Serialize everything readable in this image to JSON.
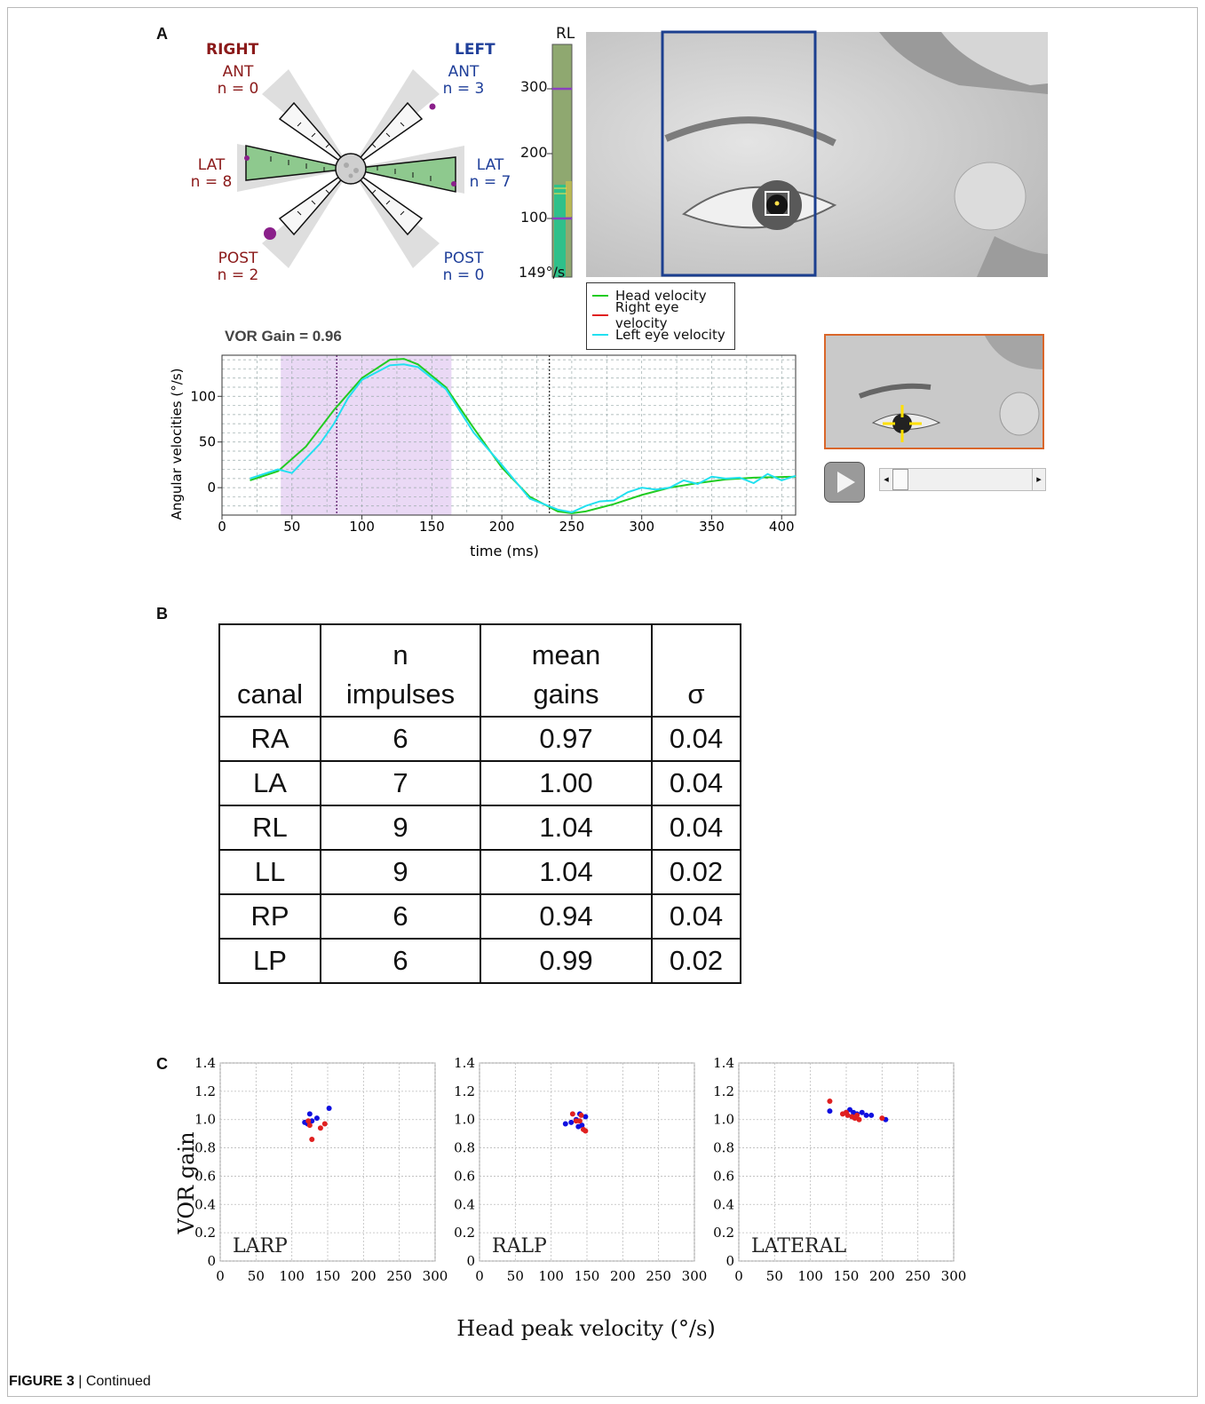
{
  "caption": {
    "figure": "FIGURE 3",
    "separator": " | ",
    "text": "Continued"
  },
  "panels": {
    "a": "A",
    "b": "B",
    "c": "C"
  },
  "rose": {
    "right_title": "RIGHT",
    "left_title": "LEFT",
    "labels": {
      "r_ant": "ANT",
      "r_ant_n": "n = 0",
      "r_lat": "LAT",
      "r_lat_n": "n = 8",
      "r_post": "POST",
      "r_post_n": "n = 2",
      "l_ant": "ANT",
      "l_ant_n": "n = 3",
      "l_lat": "LAT",
      "l_lat_n": "n = 7",
      "l_post": "POST",
      "l_post_n": "n = 0"
    }
  },
  "velocity_bar": {
    "title": "RL",
    "ticks": [
      "300",
      "200",
      "100"
    ],
    "bottom": "149°/s",
    "colors": {
      "bar": "#8fa870",
      "fill": "#2fc08a",
      "marker": "#8a3fbf"
    }
  },
  "legend": {
    "items": [
      {
        "label": "Head velocity",
        "color": "#22cc22"
      },
      {
        "label": "Right eye velocity",
        "color": "#e02020"
      },
      {
        "label": "Left eye velocity",
        "color": "#22e0f0"
      }
    ]
  },
  "video": {
    "play_icon": "play-icon",
    "scroll_left": "◂",
    "scroll_right": "▸"
  },
  "impulse_chart": {
    "title": "VOR Gain = 0.96",
    "chart_data": {
      "type": "line",
      "title": "VOR Gain = 0.96",
      "xlabel": "time (ms)",
      "ylabel": "Angular velocities (°/s)",
      "xlim": [
        0,
        410
      ],
      "ylim": [
        -30,
        145
      ],
      "x_ticks": [
        0,
        50,
        100,
        150,
        200,
        250,
        300,
        350,
        400
      ],
      "y_ticks": [
        0,
        50,
        100
      ],
      "shaded_range": [
        42,
        164
      ],
      "vlines": [
        82,
        234
      ],
      "series": [
        {
          "name": "Head velocity",
          "color": "#22cc22",
          "x": [
            20,
            40,
            60,
            80,
            100,
            120,
            130,
            140,
            160,
            180,
            200,
            220,
            240,
            250,
            260,
            280,
            300,
            320,
            340,
            360,
            380,
            410
          ],
          "y": [
            8,
            18,
            45,
            85,
            120,
            140,
            141,
            135,
            110,
            65,
            22,
            -10,
            -26,
            -28,
            -26,
            -18,
            -8,
            0,
            5,
            9,
            11,
            12
          ]
        },
        {
          "name": "Left eye velocity",
          "color": "#22e0f0",
          "x": [
            20,
            40,
            50,
            60,
            70,
            80,
            90,
            100,
            120,
            130,
            140,
            160,
            180,
            200,
            220,
            240,
            250,
            260,
            270,
            280,
            290,
            300,
            310,
            320,
            330,
            340,
            350,
            360,
            370,
            380,
            390,
            400,
            410
          ],
          "y": [
            10,
            20,
            16,
            32,
            48,
            70,
            98,
            118,
            134,
            135,
            132,
            108,
            60,
            25,
            -12,
            -24,
            -27,
            -20,
            -15,
            -14,
            -5,
            0,
            -2,
            0,
            8,
            4,
            12,
            10,
            11,
            5,
            15,
            8,
            13
          ]
        }
      ]
    }
  },
  "table": {
    "headers": [
      {
        "line1": "",
        "line2": "canal"
      },
      {
        "line1": "n",
        "line2": "impulses"
      },
      {
        "line1": "mean",
        "line2": "gains"
      },
      {
        "line1": "",
        "line2": "σ"
      }
    ],
    "rows": [
      [
        "RA",
        "6",
        "0.97",
        "0.04"
      ],
      [
        "LA",
        "7",
        "1.00",
        "0.04"
      ],
      [
        "RL",
        "9",
        "1.04",
        "0.04"
      ],
      [
        "LL",
        "9",
        "1.04",
        "0.02"
      ],
      [
        "RP",
        "6",
        "0.94",
        "0.04"
      ],
      [
        "LP",
        "6",
        "0.99",
        "0.02"
      ]
    ]
  },
  "scatter": {
    "ylabel": "VOR gain",
    "xlabel": "Head peak velocity (°/s)",
    "chart_data": [
      {
        "type": "scatter",
        "title": "LARP",
        "xlim": [
          0,
          300
        ],
        "ylim": [
          0,
          1.4
        ],
        "x_ticks": [
          0,
          50,
          100,
          150,
          200,
          250,
          300
        ],
        "y_ticks": [
          "0",
          "0.2",
          "0.4",
          "0.6",
          "0.8",
          "1.0",
          "1.2",
          "1.4"
        ],
        "series": [
          {
            "color": "#1010e0",
            "points": [
              [
                118,
                0.98
              ],
              [
                125,
                1.04
              ],
              [
                128,
                0.99
              ],
              [
                135,
                1.01
              ],
              [
                122,
                0.97
              ],
              [
                152,
                1.08
              ]
            ]
          },
          {
            "color": "#e02020",
            "points": [
              [
                125,
                0.96
              ],
              [
                128,
                0.86
              ],
              [
                140,
                0.94
              ],
              [
                146,
                0.97
              ],
              [
                123,
                0.99
              ]
            ]
          }
        ]
      },
      {
        "type": "scatter",
        "title": "RALP",
        "xlim": [
          0,
          300
        ],
        "ylim": [
          0,
          1.4
        ],
        "x_ticks": [
          0,
          50,
          100,
          150,
          200,
          250,
          300
        ],
        "y_ticks": [
          "0",
          "0.2",
          "0.4",
          "0.6",
          "0.8",
          "1.0",
          "1.2",
          "1.4"
        ],
        "series": [
          {
            "color": "#1010e0",
            "points": [
              [
                120,
                0.97
              ],
              [
                128,
                0.98
              ],
              [
                135,
                1.0
              ],
              [
                140,
                1.04
              ],
              [
                143,
                0.96
              ],
              [
                148,
                1.02
              ],
              [
                138,
                0.95
              ]
            ]
          },
          {
            "color": "#e02020",
            "points": [
              [
                130,
                1.04
              ],
              [
                140,
                0.99
              ],
              [
                145,
                0.93
              ],
              [
                148,
                0.92
              ],
              [
                135,
                0.99
              ],
              [
                142,
                1.03
              ]
            ]
          }
        ]
      },
      {
        "type": "scatter",
        "title": "LATERAL",
        "xlim": [
          0,
          300
        ],
        "ylim": [
          0,
          1.4
        ],
        "x_ticks": [
          0,
          50,
          100,
          150,
          200,
          250,
          300
        ],
        "y_ticks": [
          "0",
          "0.2",
          "0.4",
          "0.6",
          "0.8",
          "1.0",
          "1.2",
          "1.4"
        ],
        "series": [
          {
            "color": "#1010e0",
            "points": [
              [
                127,
                1.06
              ],
              [
                150,
                1.05
              ],
              [
                155,
                1.07
              ],
              [
                160,
                1.05
              ],
              [
                165,
                1.04
              ],
              [
                172,
                1.05
              ],
              [
                178,
                1.03
              ],
              [
                185,
                1.03
              ],
              [
                205,
                1.0
              ],
              [
                158,
                1.02
              ]
            ]
          },
          {
            "color": "#e02020",
            "points": [
              [
                127,
                1.13
              ],
              [
                145,
                1.04
              ],
              [
                152,
                1.03
              ],
              [
                158,
                1.02
              ],
              [
                162,
                1.01
              ],
              [
                168,
                1.0
              ],
              [
                200,
                1.01
              ],
              [
                150,
                1.05
              ],
              [
                165,
                1.03
              ]
            ]
          }
        ]
      }
    ]
  }
}
